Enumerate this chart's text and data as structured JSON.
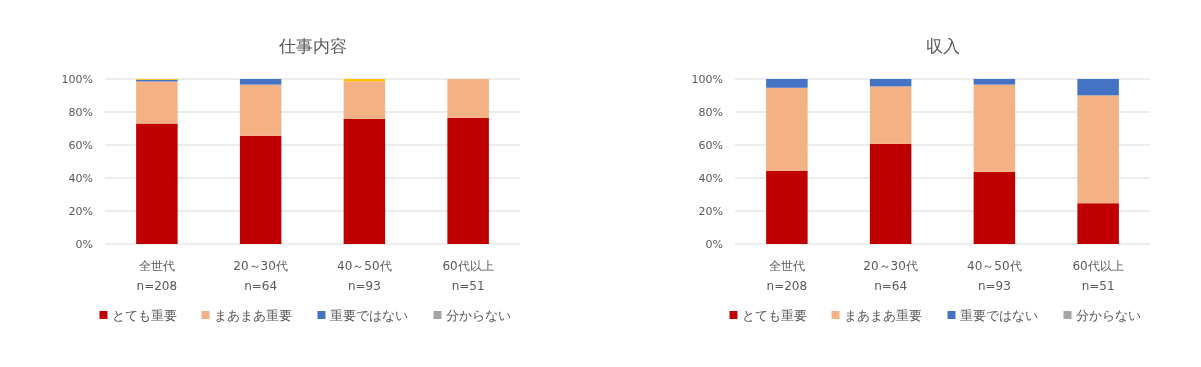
{
  "chart_data": [
    {
      "type": "bar",
      "title": "仕事内容",
      "stacked": true,
      "categories": [
        "全世代\nn=208",
        "20～30代\nn=64",
        "40～50代\nn=93",
        "60代以上\nn=51"
      ],
      "series": [
        {
          "name": "とても重要",
          "color": "#c00000",
          "values": [
            73,
            65.6,
            75.9,
            76.5
          ]
        },
        {
          "name": "まあまあ重要",
          "color": "#f4b183",
          "values": [
            25.5,
            31,
            22.7,
            23.5
          ]
        },
        {
          "name": "重要ではない",
          "color": "#4472c4",
          "values": [
            1,
            3.4,
            0,
            0
          ]
        },
        {
          "name": "分からない",
          "color": "#a5a5a5",
          "values": [
            0,
            0,
            0,
            0
          ]
        },
        {
          "color": "#ffc000",
          "values": [
            0.5,
            0,
            1.4,
            0
          ]
        }
      ],
      "ylim": [
        0,
        100
      ],
      "yticks": [
        {
          "value": 0,
          "label": "0%"
        },
        {
          "value": 20,
          "label": "20%"
        },
        {
          "value": 40,
          "label": "40%"
        },
        {
          "value": 60,
          "label": "60%"
        },
        {
          "value": 80,
          "label": "80%"
        },
        {
          "value": 100,
          "label": "100%"
        }
      ],
      "grid": "y",
      "legend": "bottom"
    },
    {
      "type": "bar",
      "title": "収入",
      "stacked": true,
      "categories": [
        "全世代\nn=208",
        "20～30代\nn=64",
        "40～50代\nn=93",
        "60代以上\nn=51"
      ],
      "series": [
        {
          "name": "とても重要",
          "color": "#c00000",
          "values": [
            44.3,
            60.7,
            43.7,
            24.7
          ]
        },
        {
          "name": "まあまあ重要",
          "color": "#f4b183",
          "values": [
            50.4,
            34.8,
            52.9,
            65.4
          ]
        },
        {
          "name": "重要ではない",
          "color": "#4472c4",
          "values": [
            5.3,
            4.5,
            3.4,
            9.9
          ]
        },
        {
          "name": "分からない",
          "color": "#a5a5a5",
          "values": [
            0,
            0,
            0,
            0
          ]
        }
      ],
      "ylim": [
        0,
        100
      ],
      "yticks": [
        {
          "value": 0,
          "label": "0%"
        },
        {
          "value": 20,
          "label": "20%"
        },
        {
          "value": 40,
          "label": "40%"
        },
        {
          "value": 60,
          "label": "60%"
        },
        {
          "value": 80,
          "label": "80%"
        },
        {
          "value": 100,
          "label": "100%"
        }
      ],
      "grid": "y",
      "legend": "bottom"
    }
  ]
}
